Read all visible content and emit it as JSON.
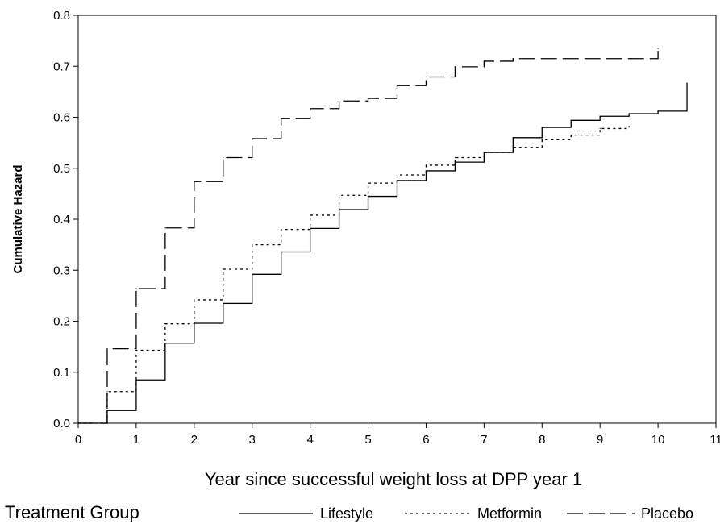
{
  "chart_data": {
    "type": "line",
    "step": true,
    "xlabel": "Year since successful weight  loss at DPP year 1",
    "ylabel": "Cumulative Hazard",
    "xlim": [
      0,
      11
    ],
    "ylim": [
      0,
      0.8
    ],
    "x_ticks": [
      "0",
      "1",
      "2",
      "3",
      "4",
      "5",
      "6",
      "7",
      "8",
      "9",
      "10",
      "11"
    ],
    "y_ticks": [
      "0.0",
      "0.1",
      "0.2",
      "0.3",
      "0.4",
      "0.5",
      "0.6",
      "0.7",
      "0.8"
    ],
    "grid": false,
    "legend": {
      "title": "Treatment Group",
      "placement": "bottom"
    },
    "series": [
      {
        "name": "Lifestyle",
        "line_style": "solid",
        "x": [
          0,
          0.5,
          1,
          1.5,
          2,
          2.5,
          3,
          3.5,
          4,
          4.5,
          5,
          5.5,
          6,
          6.5,
          7,
          7.5,
          8,
          8.5,
          9,
          9.5,
          10,
          10.5
        ],
        "values": [
          0.0,
          0.025,
          0.085,
          0.157,
          0.196,
          0.235,
          0.292,
          0.336,
          0.382,
          0.419,
          0.445,
          0.476,
          0.495,
          0.512,
          0.531,
          0.56,
          0.58,
          0.594,
          0.602,
          0.607,
          0.612,
          0.667
        ]
      },
      {
        "name": "Metformin",
        "line_style": "dotted",
        "x": [
          0,
          0.5,
          1,
          1.5,
          2,
          2.5,
          3,
          3.5,
          4,
          4.5,
          5,
          5.5,
          6,
          6.5,
          7,
          7.5,
          8,
          8.5,
          9,
          9.5
        ],
        "values": [
          0.0,
          0.062,
          0.143,
          0.195,
          0.242,
          0.302,
          0.35,
          0.38,
          0.408,
          0.447,
          0.471,
          0.487,
          0.506,
          0.521,
          0.531,
          0.541,
          0.556,
          0.565,
          0.578,
          0.582
        ]
      },
      {
        "name": "Placebo",
        "line_style": "dashed",
        "x": [
          0,
          0.5,
          1,
          1.5,
          2,
          2.5,
          3,
          3.5,
          4,
          4.5,
          5,
          5.5,
          6,
          6.5,
          7,
          7.5,
          10
        ],
        "values": [
          0.0,
          0.146,
          0.264,
          0.383,
          0.474,
          0.521,
          0.558,
          0.598,
          0.617,
          0.632,
          0.637,
          0.662,
          0.679,
          0.699,
          0.71,
          0.715,
          0.735
        ]
      }
    ]
  }
}
